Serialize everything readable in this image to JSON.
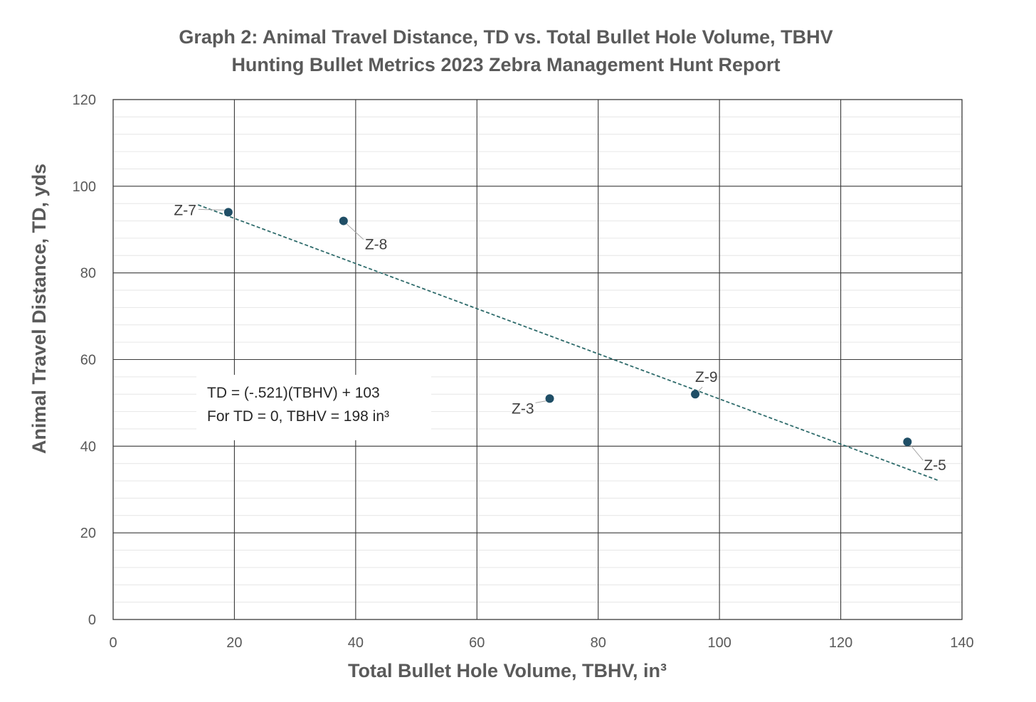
{
  "chart_data": {
    "type": "scatter",
    "title": "Graph 2: Animal Travel Distance, TD vs. Total Bullet Hole Volume, TBHV",
    "subtitle": "Hunting Bullet Metrics 2023 Zebra Management Hunt Report",
    "xlabel": "Total Bullet Hole Volume, TBHV, in³",
    "ylabel": "Animal Travel Distance, TD, yds",
    "xlim": [
      0,
      140
    ],
    "ylim": [
      0,
      120
    ],
    "x_ticks": [
      0,
      20,
      40,
      60,
      80,
      100,
      120,
      140
    ],
    "y_ticks": [
      0,
      20,
      40,
      60,
      80,
      100,
      120
    ],
    "grid": true,
    "legend": "none",
    "marker_color": "#1f4e66",
    "trendline_color": "#2e6b6b",
    "points": [
      {
        "label": "Z-7",
        "x": 19,
        "y": 94
      },
      {
        "label": "Z-8",
        "x": 38,
        "y": 92
      },
      {
        "label": "Z-3",
        "x": 72,
        "y": 51
      },
      {
        "label": "Z-9",
        "x": 96,
        "y": 52
      },
      {
        "label": "Z-5",
        "x": 131,
        "y": 41
      }
    ],
    "trendline": {
      "type": "linear",
      "slope": -0.521,
      "intercept": 103,
      "x_range": [
        14,
        136
      ]
    },
    "annotations": [
      "TD = (-.521)(TBHV) + 103",
      "For TD = 0, TBHV = 198 in³"
    ]
  }
}
